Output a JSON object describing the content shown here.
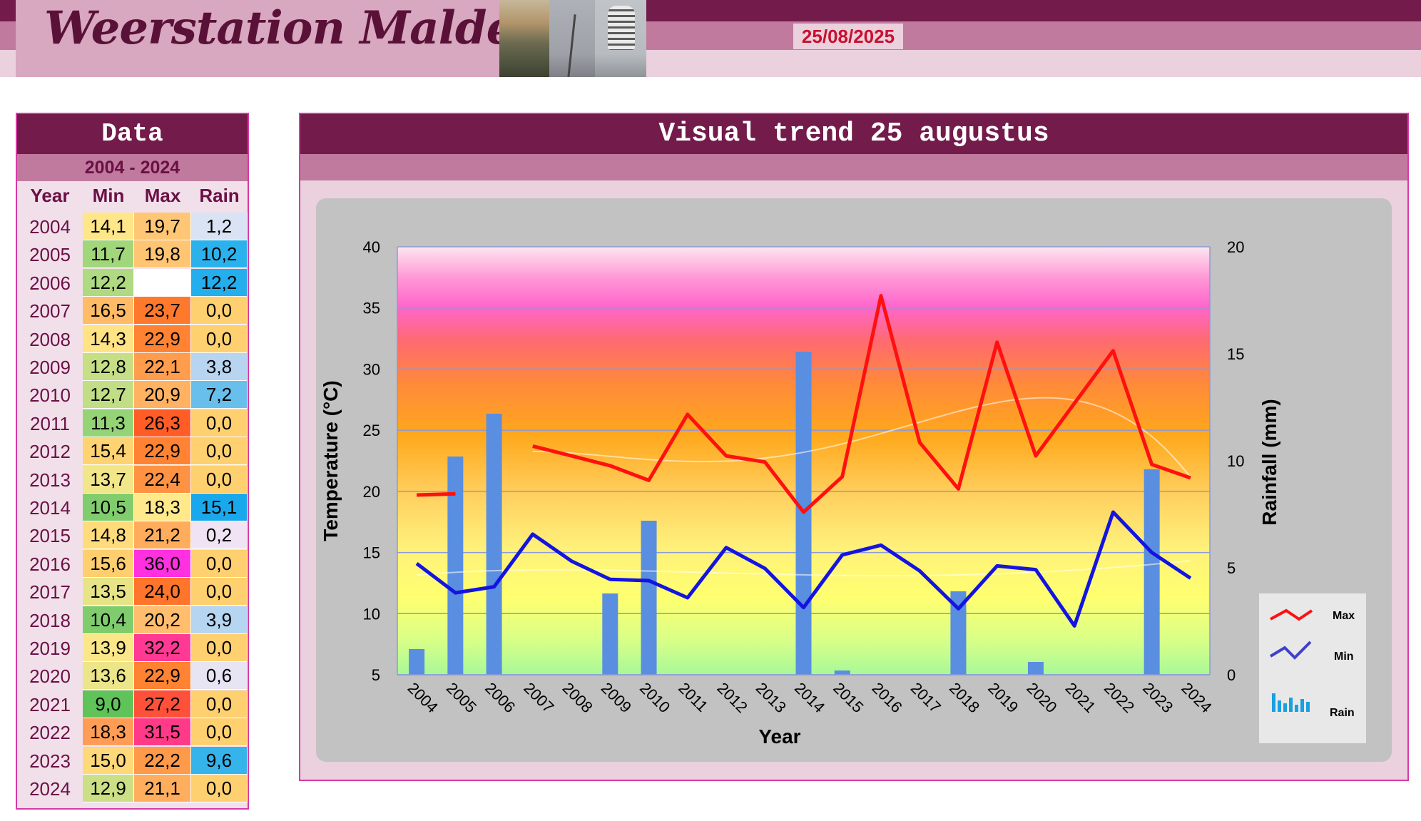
{
  "header": {
    "site_title": "Weerstation Malderen",
    "date": "25/08/2025"
  },
  "data_table": {
    "title": "Data",
    "range": "2004 - 2024",
    "columns": [
      "Year",
      "Min",
      "Max",
      "Rain"
    ],
    "rows": [
      {
        "year": "2004",
        "min": "14,1",
        "max": "19,7",
        "rain": "1,2"
      },
      {
        "year": "2005",
        "min": "11,7",
        "max": "19,8",
        "rain": "10,2"
      },
      {
        "year": "2006",
        "min": "12,2",
        "max": "",
        "rain": "12,2"
      },
      {
        "year": "2007",
        "min": "16,5",
        "max": "23,7",
        "rain": "0,0"
      },
      {
        "year": "2008",
        "min": "14,3",
        "max": "22,9",
        "rain": "0,0"
      },
      {
        "year": "2009",
        "min": "12,8",
        "max": "22,1",
        "rain": "3,8"
      },
      {
        "year": "2010",
        "min": "12,7",
        "max": "20,9",
        "rain": "7,2"
      },
      {
        "year": "2011",
        "min": "11,3",
        "max": "26,3",
        "rain": "0,0"
      },
      {
        "year": "2012",
        "min": "15,4",
        "max": "22,9",
        "rain": "0,0"
      },
      {
        "year": "2013",
        "min": "13,7",
        "max": "22,4",
        "rain": "0,0"
      },
      {
        "year": "2014",
        "min": "10,5",
        "max": "18,3",
        "rain": "15,1"
      },
      {
        "year": "2015",
        "min": "14,8",
        "max": "21,2",
        "rain": "0,2"
      },
      {
        "year": "2016",
        "min": "15,6",
        "max": "36,0",
        "rain": "0,0"
      },
      {
        "year": "2017",
        "min": "13,5",
        "max": "24,0",
        "rain": "0,0"
      },
      {
        "year": "2018",
        "min": "10,4",
        "max": "20,2",
        "rain": "3,9"
      },
      {
        "year": "2019",
        "min": "13,9",
        "max": "32,2",
        "rain": "0,0"
      },
      {
        "year": "2020",
        "min": "13,6",
        "max": "22,9",
        "rain": "0,6"
      },
      {
        "year": "2021",
        "min": "9,0",
        "max": "27,2",
        "rain": "0,0"
      },
      {
        "year": "2022",
        "min": "18,3",
        "max": "31,5",
        "rain": "0,0"
      },
      {
        "year": "2023",
        "min": "15,0",
        "max": "22,2",
        "rain": "9,6"
      },
      {
        "year": "2024",
        "min": "12,9",
        "max": "21,1",
        "rain": "0,0"
      }
    ]
  },
  "colors": {
    "max_line": "#ff1010",
    "min_line": "#1414e0",
    "rain_bar": "#5a8ee0",
    "header_dark": "#731b4a",
    "header_mid": "#c07a9e",
    "date_text": "#c8102e"
  },
  "chart_data": {
    "type": "line",
    "title": "Visual trend 25 augustus",
    "xlabel": "Year",
    "ylabel": "Temperature (°C)",
    "y2label": "Rainfall (mm)",
    "categories": [
      "2004",
      "2005",
      "2006",
      "2007",
      "2008",
      "2009",
      "2010",
      "2011",
      "2012",
      "2013",
      "2014",
      "2015",
      "2016",
      "2017",
      "2018",
      "2019",
      "2020",
      "2021",
      "2022",
      "2023",
      "2024"
    ],
    "ylim": [
      5,
      40
    ],
    "y2lim": [
      0,
      20
    ],
    "yticks": [
      5,
      10,
      15,
      20,
      25,
      30,
      35,
      40
    ],
    "y2ticks": [
      0,
      5,
      10,
      15,
      20
    ],
    "grid": true,
    "legend_position": "bottom-right",
    "series": [
      {
        "name": "Max",
        "type": "line",
        "axis": "left",
        "values": [
          19.7,
          19.8,
          null,
          23.7,
          22.9,
          22.1,
          20.9,
          26.3,
          22.9,
          22.4,
          18.3,
          21.2,
          36.0,
          24.0,
          20.2,
          32.2,
          22.9,
          27.2,
          31.5,
          22.2,
          21.1
        ]
      },
      {
        "name": "Min",
        "type": "line",
        "axis": "left",
        "values": [
          14.1,
          11.7,
          12.2,
          16.5,
          14.3,
          12.8,
          12.7,
          11.3,
          15.4,
          13.7,
          10.5,
          14.8,
          15.6,
          13.5,
          10.4,
          13.9,
          13.6,
          9.0,
          18.3,
          15.0,
          12.9
        ]
      },
      {
        "name": "Rain",
        "type": "bar",
        "axis": "right",
        "values": [
          1.2,
          10.2,
          12.2,
          0.0,
          0.0,
          3.8,
          7.2,
          0.0,
          0.0,
          0.0,
          15.1,
          0.2,
          0.0,
          0.0,
          3.9,
          0.0,
          0.6,
          0.0,
          0.0,
          9.6,
          0.0
        ]
      }
    ]
  }
}
